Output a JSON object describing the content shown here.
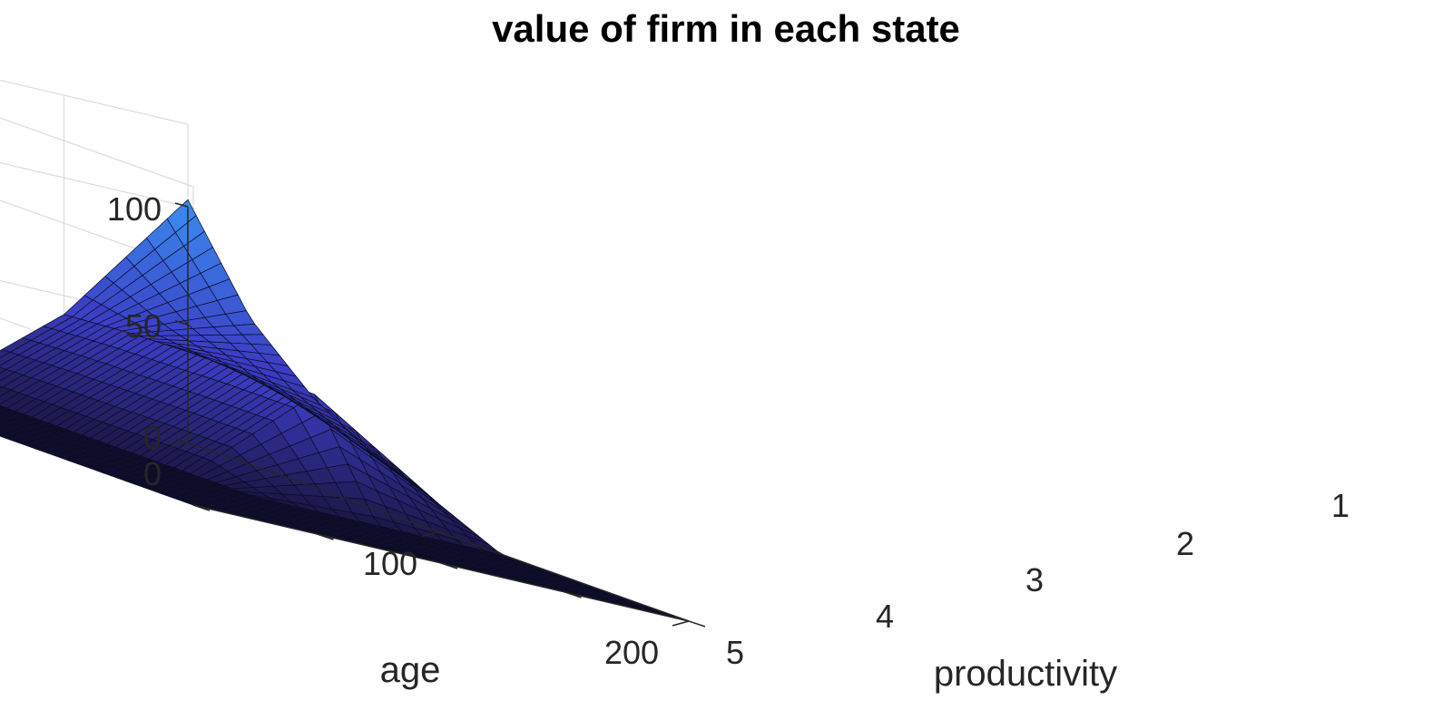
{
  "chart_data": {
    "type": "surface",
    "title": "value of firm in each state",
    "xlabel": "age",
    "ylabel": "productivity",
    "zlabel": "",
    "x_ticks": [
      0,
      100,
      200
    ],
    "y_ticks": [
      1,
      2,
      3,
      4,
      5
    ],
    "z_ticks": [
      0,
      50,
      100
    ],
    "xlim": [
      0,
      200
    ],
    "ylim": [
      1,
      5
    ],
    "zlim": [
      0,
      100
    ],
    "grid": true,
    "colormap": "dark navy to bright blue",
    "colors": {
      "low": "#1c1747",
      "mid": "#3b3dc4",
      "high": "#3a8cf0",
      "grid": "#dcdcdc",
      "axis": "#262626"
    },
    "surface_profile": {
      "age": [
        0,
        25,
        50,
        75,
        100,
        125,
        150,
        175,
        200
      ],
      "productivity_5_value": [
        103,
        62,
        38,
        22,
        12,
        0,
        0,
        0,
        0
      ],
      "productivity_4_value": [
        42,
        44,
        45,
        46,
        46,
        0,
        0,
        0,
        0
      ],
      "productivity_1_to_3_value": 0
    }
  }
}
